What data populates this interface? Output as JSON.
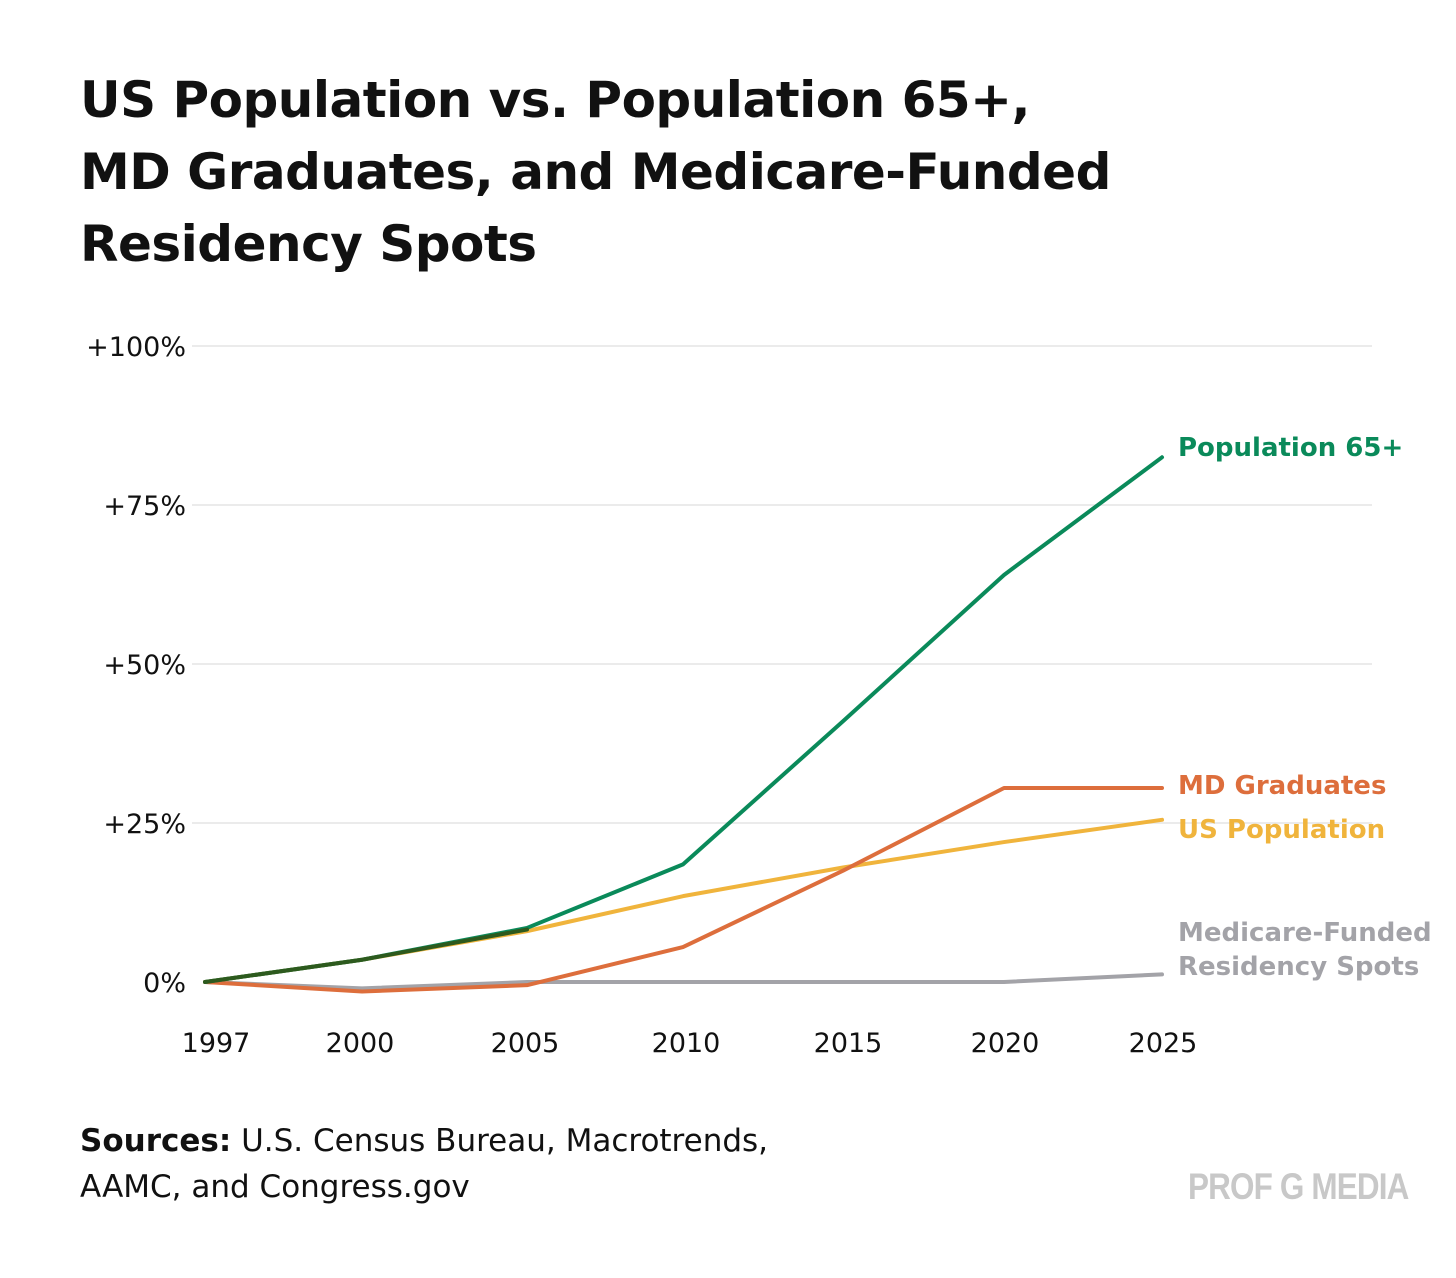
{
  "chart_data": {
    "type": "line",
    "title_lines": [
      "US Population vs. Population 65+,",
      "MD Graduates, and Medicare-Funded",
      "Residency Spots"
    ],
    "x": [
      1997,
      2000,
      2005,
      2010,
      2015,
      2020,
      2025
    ],
    "x_tick_labels": [
      "1997",
      "2000",
      "2005",
      "2010",
      "2015",
      "2020",
      "2025"
    ],
    "y_ticks": [
      0,
      25,
      50,
      75,
      100
    ],
    "y_tick_labels": [
      "0%",
      "+25%",
      "+50%",
      "+75%",
      "+100%"
    ],
    "ylim": [
      0,
      100
    ],
    "grid": true,
    "legend": "direct labels at line ends (right)",
    "series": [
      {
        "name": "Population 65+",
        "label_lines": [
          "Population 65+"
        ],
        "color": "#0a8a5a",
        "values": [
          0,
          3.5,
          8.5,
          18.5,
          41,
          64,
          82.5
        ]
      },
      {
        "name": "MD Graduates",
        "label_lines": [
          "MD Graduates"
        ],
        "color": "#dd6e3c",
        "values": [
          0,
          -1.5,
          -0.5,
          5.5,
          17.5,
          30.5,
          30.5
        ]
      },
      {
        "name": "US Population",
        "label_lines": [
          "US Population"
        ],
        "color": "#f0b43c",
        "values": [
          0,
          3.5,
          8,
          13.5,
          18,
          22,
          25.5
        ]
      },
      {
        "name": "Medicare-Funded Residency Spots",
        "label_lines": [
          "Medicare-Funded",
          "Residency Spots"
        ],
        "color": "#a3a3a8",
        "values": [
          0,
          -1,
          0,
          0,
          0,
          0,
          1.2
        ]
      }
    ]
  },
  "sources": {
    "label": "Sources:",
    "line1": " U.S. Census Bureau, Macrotrends,",
    "line2": "AAMC, and Congress.gov"
  },
  "brand": "PROF G MEDIA"
}
